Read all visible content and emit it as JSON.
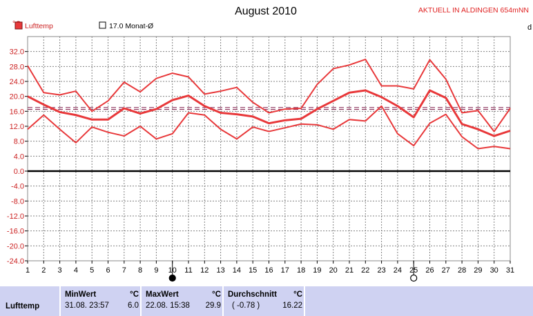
{
  "header": {
    "status_text": "AKTUELL IN ALDINGEN 654mNN",
    "unit_left": "°C",
    "unit_right_partial": "d"
  },
  "legend": {
    "series_label": "Lufttemp",
    "month_avg_label": "17.0 Monat-Ø"
  },
  "colors": {
    "series": "#e8383a",
    "avg_line": "#7a1040",
    "zero_line": "#000000",
    "grid": "#808080",
    "axis_text": "#cc2222",
    "panel_bg": "#cfd2f2"
  },
  "moon_phases": [
    {
      "day": 10,
      "phase": "new-moon"
    },
    {
      "day": 25,
      "phase": "full-moon"
    }
  ],
  "chart_data": {
    "type": "line",
    "title": "August 2010",
    "xlabel": "",
    "ylabel": "°C",
    "x": [
      1,
      2,
      3,
      4,
      5,
      6,
      7,
      8,
      9,
      10,
      11,
      12,
      13,
      14,
      15,
      16,
      17,
      18,
      19,
      20,
      21,
      22,
      23,
      24,
      25,
      26,
      27,
      28,
      29,
      30,
      31
    ],
    "xlim": [
      1,
      31
    ],
    "ylim": [
      -24,
      36
    ],
    "yticks": [
      32.0,
      28.0,
      24.0,
      20.0,
      16.0,
      12.0,
      8.0,
      4.0,
      0.0,
      -4.0,
      -8.0,
      -12.0,
      -16.0,
      -20.0,
      -24.0
    ],
    "ytick_labels": [
      "32.0",
      "28.0",
      "24.0",
      "20.0",
      "16.0",
      "12.0",
      "8.0",
      "4.0",
      "0.0",
      "-4.0",
      "-8.0",
      "-12.0",
      "-16.0",
      "-20.0",
      "-24.0"
    ],
    "grid": true,
    "month_average": 17.0,
    "series": [
      {
        "role": "max",
        "values": [
          28.2,
          21.0,
          20.4,
          21.4,
          16.0,
          18.8,
          23.8,
          21.2,
          24.8,
          26.2,
          25.2,
          20.6,
          21.4,
          22.4,
          18.4,
          15.6,
          16.6,
          16.8,
          23.2,
          27.4,
          28.4,
          29.9,
          22.8,
          22.8,
          22.0,
          29.8,
          24.6,
          15.6,
          16.2,
          10.6,
          16.8
        ]
      },
      {
        "role": "mean",
        "values": [
          20.0,
          17.8,
          15.8,
          15.0,
          13.8,
          13.8,
          16.8,
          15.4,
          16.6,
          19.0,
          20.2,
          17.4,
          15.6,
          15.2,
          14.6,
          12.8,
          13.6,
          14.0,
          16.6,
          18.8,
          21.0,
          21.6,
          19.8,
          17.4,
          14.4,
          21.6,
          19.6,
          12.6,
          11.2,
          9.4,
          10.8
        ]
      },
      {
        "role": "min",
        "values": [
          11.2,
          15.0,
          11.2,
          7.6,
          11.8,
          10.4,
          9.4,
          12.0,
          8.6,
          10.0,
          15.6,
          15.0,
          11.2,
          8.6,
          11.8,
          10.6,
          11.6,
          12.6,
          12.4,
          11.2,
          13.8,
          13.4,
          17.4,
          10.0,
          6.8,
          12.8,
          15.2,
          9.2,
          6.0,
          6.6,
          6.0
        ]
      }
    ],
    "dashed_lines": [
      17.0,
      16.5
    ]
  },
  "stats": {
    "row_label": "Lufttemp",
    "min": {
      "title": "MinWert",
      "unit": "°C",
      "datetime": "31.08.  23:57",
      "value": "6.0"
    },
    "max": {
      "title": "MaxWert",
      "unit": "°C",
      "datetime": "22.08.  15:38",
      "value": "29.9"
    },
    "avg": {
      "title": "Durchschnitt",
      "unit": "°C",
      "delta": "( -0.78 )",
      "value": "16.22"
    }
  }
}
